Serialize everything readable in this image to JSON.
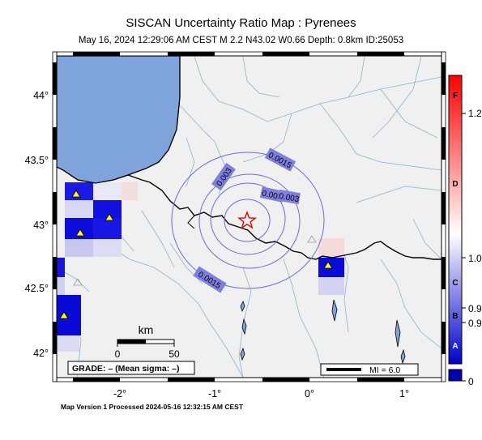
{
  "header": {
    "title": "SISCAN Uncertainty Ratio Map : Pyrenees",
    "subtitle": "May 16, 2024 12:29:06 AM CEST    M 2.2    N43.02 W0.66    Depth: 0.8km    ID:25053"
  },
  "footer": {
    "processed": "Map Version 1 Processed 2024-05-16 12:32:15 AM CEST"
  },
  "map": {
    "lon_ticks": [
      "-2°",
      "-1°",
      "0°",
      "1°"
    ],
    "lat_ticks": [
      "44°",
      "43.5°",
      "43°",
      "42.5°",
      "42°"
    ],
    "epicenter": {
      "lat": 43.02,
      "lon": -0.66,
      "symbol": "star-icon"
    },
    "contour_labels": [
      "0.003",
      "0.0015",
      "0.003",
      "0.003",
      "0.0015"
    ],
    "scale_bar": {
      "unit": "km",
      "left": "0",
      "right": "50"
    },
    "grade_box": "GRADE: – (Mean sigma: –)",
    "mi_legend": "MI = 6.0"
  },
  "colorbar": {
    "right_labels": [
      "1.2",
      "1.0",
      "0.9",
      "0.9",
      "0"
    ],
    "left_labels": [
      "F",
      "D",
      "C",
      "B",
      "A"
    ],
    "colors": {
      "top": "#ff0000",
      "middle": "#ffffff",
      "bottom": "#0000cc",
      "base_box": "#0000b4"
    }
  },
  "colors": {
    "ocean": "#7fa4dc",
    "land": "#f0f0f0",
    "rivers": "#8ab4cc",
    "border": "#000000",
    "contours": "#6b6be0",
    "station": "#ffff00",
    "star": "#ff0000"
  }
}
